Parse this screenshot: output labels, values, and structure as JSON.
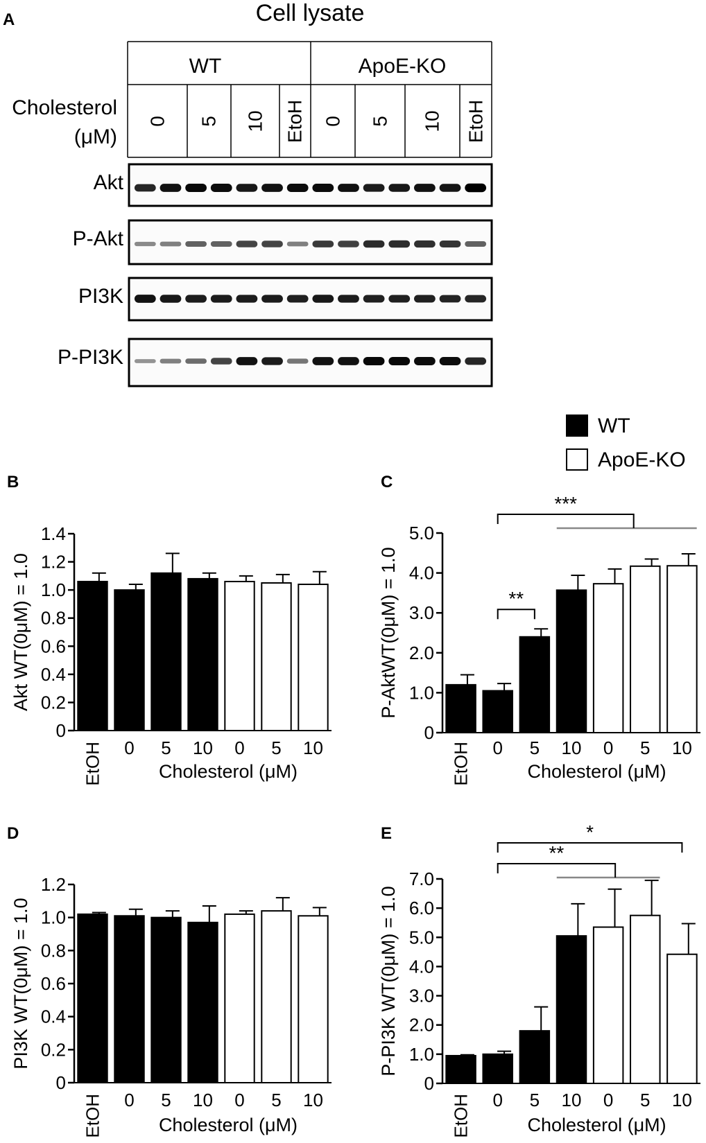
{
  "panel_a": {
    "letter": "A",
    "title": "Cell lysate",
    "groups": [
      "WT",
      "ApoE-KO"
    ],
    "condition_label_line1": "Cholesterol",
    "condition_label_line2": "(μM)",
    "conditions": [
      "0",
      "5",
      "10",
      "EtoH",
      "0",
      "5",
      "10",
      "EtoH"
    ],
    "blots": [
      {
        "label": "Akt",
        "intensities": [
          0.75,
          0.85,
          0.9,
          0.88,
          0.82,
          0.85,
          0.88,
          0.88,
          0.86,
          0.8,
          0.82,
          0.85,
          0.83,
          0.95
        ]
      },
      {
        "label": "P-Akt",
        "intensities": [
          0.25,
          0.3,
          0.45,
          0.45,
          0.6,
          0.6,
          0.3,
          0.65,
          0.62,
          0.72,
          0.72,
          0.7,
          0.68,
          0.45
        ]
      },
      {
        "label": "PI3K",
        "intensities": [
          0.85,
          0.82,
          0.8,
          0.8,
          0.8,
          0.8,
          0.78,
          0.82,
          0.8,
          0.78,
          0.78,
          0.78,
          0.76,
          0.75
        ]
      },
      {
        "label": "P-PI3K",
        "intensities": [
          0.2,
          0.3,
          0.4,
          0.6,
          0.85,
          0.8,
          0.35,
          0.85,
          0.85,
          0.9,
          0.9,
          0.88,
          0.88,
          0.75
        ]
      }
    ]
  },
  "legend": {
    "items": [
      {
        "name": "WT",
        "color": "#000000"
      },
      {
        "name": "ApoE-KO",
        "color": "#ffffff"
      }
    ]
  },
  "chart_data": [
    {
      "panel": "B",
      "type": "bar",
      "ylabel": "Akt WT(0μM) = 1.0",
      "xlabel": "Cholesterol (μM)",
      "categories": [
        "EtOH",
        "0",
        "5",
        "10",
        "0",
        "5",
        "10"
      ],
      "groups": [
        "WT",
        "WT",
        "WT",
        "WT",
        "ApoE-KO",
        "ApoE-KO",
        "ApoE-KO"
      ],
      "values": [
        1.06,
        1.0,
        1.12,
        1.08,
        1.06,
        1.05,
        1.04
      ],
      "errors": [
        0.06,
        0.04,
        0.14,
        0.04,
        0.04,
        0.06,
        0.09
      ],
      "ylim": [
        0,
        1.4
      ],
      "yticks": [
        "0",
        "0.2",
        "0.4",
        "0.6",
        "0.8",
        "1.0",
        "1.2",
        "1.4"
      ],
      "significance": []
    },
    {
      "panel": "C",
      "type": "bar",
      "ylabel": "P-AktWT(0μM) = 1.0",
      "xlabel": "Cholesterol (μM)",
      "categories": [
        "EtOH",
        "0",
        "5",
        "10",
        "0",
        "5",
        "10"
      ],
      "groups": [
        "WT",
        "WT",
        "WT",
        "WT",
        "ApoE-KO",
        "ApoE-KO",
        "ApoE-KO"
      ],
      "values": [
        1.2,
        1.05,
        2.4,
        3.57,
        3.73,
        4.17,
        4.18
      ],
      "errors": [
        0.25,
        0.18,
        0.2,
        0.37,
        0.37,
        0.18,
        0.3
      ],
      "ylim": [
        0,
        5.0
      ],
      "yticks": [
        "0",
        "1.0",
        "2.0",
        "3.0",
        "4.0",
        "5.0"
      ],
      "significance": [
        {
          "label": "**",
          "from": 1,
          "to": [
            2
          ]
        },
        {
          "label": "***",
          "from": 1,
          "to": [
            3,
            6
          ]
        }
      ]
    },
    {
      "panel": "D",
      "type": "bar",
      "ylabel": "PI3K WT(0μM) = 1.0",
      "xlabel": "Cholesterol (μM)",
      "categories": [
        "EtOH",
        "0",
        "5",
        "10",
        "0",
        "5",
        "10"
      ],
      "groups": [
        "WT",
        "WT",
        "WT",
        "WT",
        "ApoE-KO",
        "ApoE-KO",
        "ApoE-KO"
      ],
      "values": [
        1.02,
        1.01,
        1.0,
        0.97,
        1.02,
        1.04,
        1.01
      ],
      "errors": [
        0.01,
        0.04,
        0.04,
        0.1,
        0.02,
        0.08,
        0.05
      ],
      "ylim": [
        0,
        1.2
      ],
      "yticks": [
        "0",
        "0.2",
        "0.4",
        "0.6",
        "0.8",
        "1.0",
        "1.2"
      ],
      "significance": []
    },
    {
      "panel": "E",
      "type": "bar",
      "ylabel": "P-PI3K WT(0μM) = 1.0",
      "xlabel": "Cholesterol (μM)",
      "categories": [
        "EtOH",
        "0",
        "5",
        "10",
        "0",
        "5",
        "10"
      ],
      "groups": [
        "WT",
        "WT",
        "WT",
        "WT",
        "ApoE-KO",
        "ApoE-KO",
        "ApoE-KO"
      ],
      "values": [
        0.95,
        1.0,
        1.8,
        5.05,
        5.35,
        5.75,
        4.42
      ],
      "errors": [
        0.03,
        0.1,
        0.82,
        1.1,
        1.3,
        1.2,
        1.05
      ],
      "ylim": [
        0,
        7.0
      ],
      "yticks": [
        "0",
        "1.0",
        "2.0",
        "3.0",
        "4.0",
        "5.0",
        "6.0",
        "7.0"
      ],
      "significance": [
        {
          "label": "*",
          "from": 1,
          "to": [
            6
          ]
        },
        {
          "label": "**",
          "from": 1,
          "to": [
            3,
            5
          ]
        }
      ]
    }
  ]
}
